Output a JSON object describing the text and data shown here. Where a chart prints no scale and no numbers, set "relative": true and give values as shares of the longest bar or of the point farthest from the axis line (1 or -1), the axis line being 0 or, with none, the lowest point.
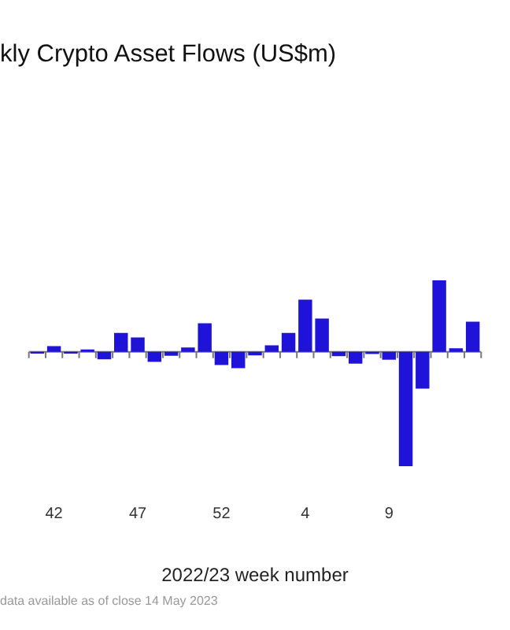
{
  "chart_data": {
    "type": "bar",
    "title": "kly Crypto Asset Flows (US$m)",
    "xlabel": "2022/23 week number",
    "annotations": [
      "data available as of close 14 May 2023"
    ],
    "relative": true,
    "color": "#1f12d9",
    "categories": [
      null,
      "42",
      null,
      null,
      null,
      null,
      "47",
      null,
      null,
      null,
      null,
      "52",
      null,
      null,
      null,
      null,
      "4",
      null,
      null,
      null,
      null,
      "9",
      null,
      null,
      null,
      null,
      null
    ],
    "values": [
      -0.015,
      0.05,
      -0.015,
      0.02,
      -0.065,
      0.165,
      0.126,
      -0.088,
      -0.034,
      0.038,
      0.249,
      -0.115,
      -0.142,
      -0.031,
      0.057,
      0.165,
      0.456,
      0.291,
      -0.038,
      -0.103,
      -0.019,
      -0.069,
      -1,
      -0.322,
      0.625,
      0.031,
      0.264
    ],
    "grid": false,
    "legend": false
  }
}
